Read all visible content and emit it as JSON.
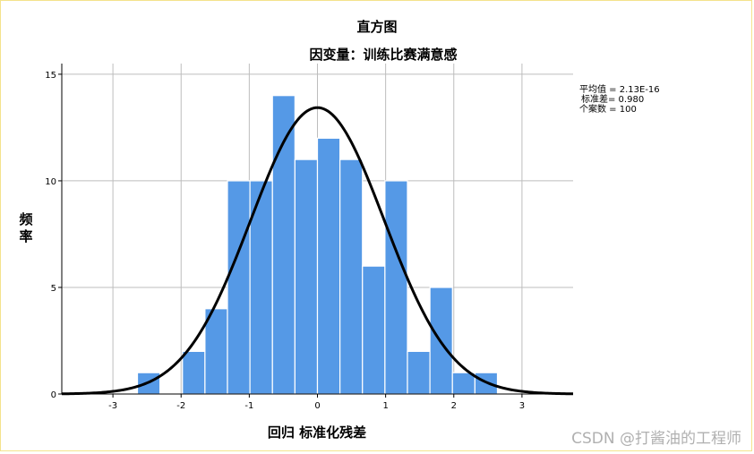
{
  "chart_data": {
    "type": "histogram",
    "title": "直方图",
    "subtitle": "因变量：训练比赛满意感",
    "xlabel": "回归 标准化残差",
    "ylabel": "频率",
    "xlim": [
      -3.75,
      3.75
    ],
    "ylim": [
      0,
      15.5
    ],
    "x_ticks": [
      -3,
      -2,
      -1,
      0,
      1,
      2,
      3
    ],
    "y_ticks": [
      0,
      5,
      10,
      15
    ],
    "grid": true,
    "bin_width": 0.33,
    "bins": [
      {
        "start": -2.64,
        "count": 1
      },
      {
        "start": -2.31,
        "count": 0
      },
      {
        "start": -1.98,
        "count": 2
      },
      {
        "start": -1.65,
        "count": 4
      },
      {
        "start": -1.32,
        "count": 10
      },
      {
        "start": -0.99,
        "count": 10
      },
      {
        "start": -0.66,
        "count": 14
      },
      {
        "start": -0.33,
        "count": 11
      },
      {
        "start": 0.0,
        "count": 12
      },
      {
        "start": 0.33,
        "count": 11
      },
      {
        "start": 0.66,
        "count": 6
      },
      {
        "start": 0.99,
        "count": 10
      },
      {
        "start": 1.32,
        "count": 2
      },
      {
        "start": 1.65,
        "count": 5
      },
      {
        "start": 1.98,
        "count": 1
      },
      {
        "start": 2.31,
        "count": 1
      }
    ],
    "normal_curve": {
      "mean": 0.0,
      "sd": 0.98,
      "n": 100
    },
    "stats": [
      "平均值 = 2.13E-16",
      "标准差= 0.980",
      "个案数 = 100"
    ],
    "bar_color": "#5599e6",
    "bar_edge_color": "#ffffff",
    "curve_color": "#000000",
    "grid_color": "#bdbdbd"
  },
  "watermark": "CSDN @打酱油的工程师"
}
